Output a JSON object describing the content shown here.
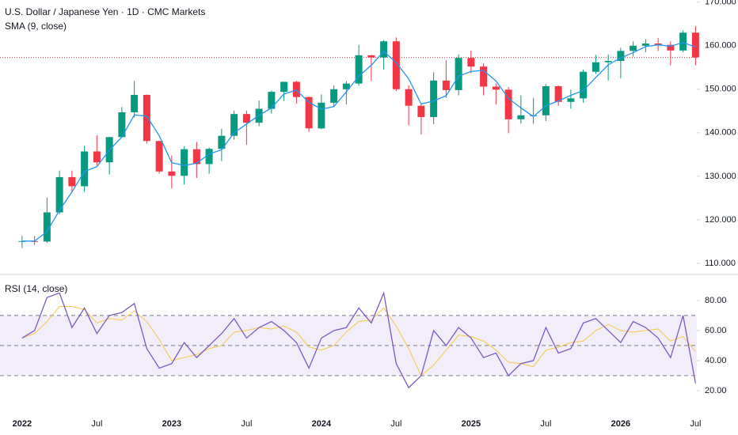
{
  "chart_data": [
    {
      "type": "candlestick",
      "title": "U.S. Dollar / Japanese Yen · 1D · CMC Markets",
      "open": [
        115.1,
        115.1,
        115.0,
        121.7,
        129.8,
        127.7,
        135.7,
        133.2,
        139.0,
        144.7,
        148.7,
        138.1,
        131.1,
        130.1,
        136.2,
        132.8,
        136.3,
        139.3,
        144.3,
        142.3,
        145.5,
        149.4,
        151.7,
        148.2,
        141.0,
        146.9,
        150.0,
        151.3,
        157.8,
        157.3,
        161.0,
        150.0,
        146.2,
        143.6,
        152.0,
        149.8,
        157.2,
        155.2,
        150.6,
        149.9,
        143.1,
        144.0,
        144.0,
        150.7,
        147.1,
        147.9,
        154.0,
        156.2,
        156.5,
        158.8,
        160.0,
        160.5,
        160.2,
        158.9,
        163.0
      ],
      "high": [
        116.3,
        116.3,
        125.1,
        131.3,
        131.3,
        137.0,
        139.4,
        139.0,
        145.9,
        151.9,
        148.8,
        138.2,
        134.8,
        136.9,
        137.9,
        136.6,
        140.9,
        145.1,
        145.1,
        147.4,
        149.7,
        151.7,
        151.9,
        148.3,
        148.8,
        150.9,
        151.9,
        160.2,
        157.9,
        161.3,
        161.9,
        150.9,
        146.5,
        153.9,
        156.7,
        158.0,
        158.9,
        155.9,
        151.3,
        150.5,
        148.6,
        148.0,
        151.2,
        150.9,
        149.9,
        154.5,
        157.9,
        158.0,
        159.5,
        161.0,
        161.5,
        161.8,
        161.0,
        163.5,
        164.5
      ],
      "low": [
        113.5,
        114.2,
        114.7,
        121.3,
        126.4,
        126.4,
        132.5,
        130.4,
        138.9,
        143.5,
        137.5,
        130.6,
        127.2,
        128.1,
        129.6,
        130.6,
        133.5,
        138.4,
        137.2,
        141.5,
        144.4,
        147.3,
        146.7,
        140.2,
        140.8,
        145.9,
        146.5,
        150.8,
        151.9,
        154.5,
        149.6,
        141.7,
        139.6,
        142.0,
        148.0,
        148.6,
        153.7,
        148.6,
        146.5,
        139.9,
        142.1,
        142.1,
        142.7,
        146.2,
        145.5,
        146.9,
        153.5,
        152.0,
        152.5,
        157.5,
        158.5,
        158.8,
        155.5,
        158.5,
        155.5
      ],
      "close": [
        115.1,
        115.0,
        121.7,
        129.8,
        127.7,
        135.7,
        133.2,
        139.0,
        144.7,
        148.7,
        138.1,
        131.1,
        130.1,
        136.2,
        132.8,
        136.3,
        139.3,
        144.3,
        142.3,
        145.5,
        149.4,
        151.7,
        148.2,
        141.0,
        146.9,
        150.0,
        151.3,
        157.8,
        157.3,
        161.0,
        150.0,
        146.2,
        143.6,
        152.0,
        149.8,
        157.2,
        155.2,
        150.6,
        149.9,
        143.1,
        144.0,
        144.0,
        150.7,
        147.1,
        147.9,
        154.0,
        156.2,
        156.5,
        158.8,
        160.0,
        160.5,
        160.2,
        158.9,
        163.0,
        157.3
      ],
      "up_color": "#089981",
      "down_color": "#f23645",
      "series": [
        {
          "name": "SMA (9, close)",
          "color": "#2196f3",
          "values": [
            115.1,
            115.1,
            117.3,
            122.2,
            126.4,
            131.1,
            132.2,
            136.0,
            139.0,
            144.1,
            143.8,
            139.3,
            133.1,
            132.5,
            133.0,
            135.1,
            136.1,
            140.0,
            142.0,
            144.0,
            145.7,
            148.9,
            149.8,
            147.0,
            145.4,
            146.0,
            149.4,
            153.0,
            155.5,
            158.7,
            156.1,
            152.4,
            146.6,
            147.3,
            148.5,
            153.0,
            154.1,
            154.3,
            151.9,
            147.9,
            145.7,
            143.7,
            146.2,
            147.3,
            148.6,
            149.7,
            152.7,
            155.6,
            157.2,
            158.4,
            159.8,
            160.2,
            159.9,
            160.7,
            159.7
          ]
        }
      ],
      "ylim": [
        107.8,
        170.5
      ],
      "yticks": [
        {
          "value": 110,
          "label": "110.000"
        },
        {
          "value": 120,
          "label": "120.000"
        },
        {
          "value": 130,
          "label": "130.000"
        },
        {
          "value": 140,
          "label": "140.000"
        },
        {
          "value": 150,
          "label": "150.000"
        },
        {
          "value": 160,
          "label": "160.000"
        },
        {
          "value": 170,
          "label": "170.000"
        }
      ]
    },
    {
      "type": "line",
      "title": "RSI (14, close)",
      "categories": [
        "2022",
        null,
        null,
        null,
        null,
        null,
        "Jul",
        null,
        null,
        null,
        null,
        null,
        "2023",
        null,
        null,
        null,
        null,
        null,
        "Jul",
        null,
        null,
        null,
        null,
        null,
        "2024",
        null,
        null,
        null,
        null,
        null,
        "Jul",
        null,
        null,
        null,
        null,
        null,
        "2025",
        null,
        null,
        null,
        null,
        null,
        "Jul",
        null,
        null,
        null,
        null,
        null,
        "2026",
        null,
        null,
        null,
        null,
        null,
        "Jul"
      ],
      "series": [
        {
          "color": "#7e57c2",
          "values": [
            55,
            60,
            82,
            85,
            62,
            75,
            58,
            70,
            72,
            78,
            48,
            35,
            38,
            52,
            42,
            50,
            58,
            68,
            55,
            62,
            66,
            60,
            52,
            35,
            55,
            60,
            62,
            75,
            65,
            85,
            38,
            22,
            30,
            60,
            50,
            62,
            55,
            42,
            45,
            30,
            38,
            40,
            62,
            45,
            48,
            65,
            68,
            60,
            52,
            66,
            62,
            55,
            42,
            70,
            25
          ]
        },
        {
          "color": "#f7c64a",
          "values": [
            55,
            58,
            66,
            76,
            76,
            74,
            65,
            68,
            67,
            73,
            66,
            54,
            40,
            42,
            44,
            48,
            50,
            59,
            60,
            62,
            61,
            63,
            59,
            49,
            47,
            50,
            59,
            66,
            67,
            75,
            63,
            48,
            30,
            37,
            47,
            57,
            56,
            53,
            47,
            39,
            38,
            36,
            47,
            49,
            52,
            53,
            60,
            64,
            60,
            59,
            60,
            61,
            53,
            56,
            46
          ]
        }
      ],
      "bands": [
        30,
        50,
        70
      ],
      "band_color": "#7e57c2",
      "ylim": [
        10.5,
        96.8
      ],
      "yticks": [
        {
          "value": 20,
          "label": "20.00"
        },
        {
          "value": 40,
          "label": "40.00"
        },
        {
          "value": 60,
          "label": "60.00"
        },
        {
          "value": 80,
          "label": "80.00"
        }
      ]
    }
  ]
}
